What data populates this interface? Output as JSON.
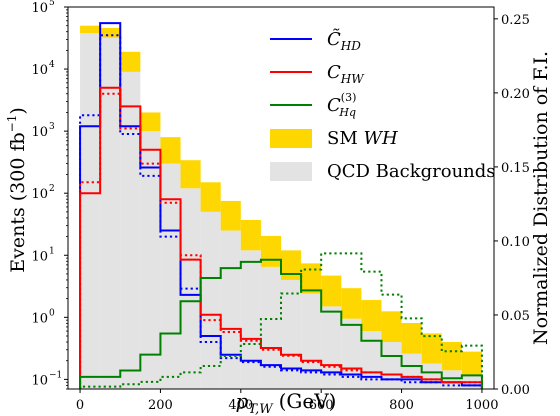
{
  "chart_data": {
    "type": "histogram",
    "xlabel": "p_{T,W} (GeV)",
    "xlabel_parts": {
      "p": "p",
      "sub": "T,W",
      "unit": "(GeV)"
    },
    "ylabel_left": "Events (300 fb",
    "ylabel_left_sup": "−1",
    "ylabel_left_close": ")",
    "ylabel_right": "Normalized Distribution of F.I.",
    "xlim": [
      -30,
      1030
    ],
    "ylim_left": [
      0.07,
      100000
    ],
    "yscale_left": "log",
    "ylim_right": [
      0.0,
      0.258
    ],
    "xticks": [
      0,
      200,
      400,
      600,
      800,
      1000
    ],
    "yticks_left": [
      {
        "value": 0.1,
        "base": "10",
        "exp": "−1"
      },
      {
        "value": 1,
        "base": "10",
        "exp": "0"
      },
      {
        "value": 10,
        "base": "10",
        "exp": "1"
      },
      {
        "value": 100,
        "base": "10",
        "exp": "2"
      },
      {
        "value": 1000,
        "base": "10",
        "exp": "3"
      },
      {
        "value": 10000,
        "base": "10",
        "exp": "4"
      },
      {
        "value": 100000,
        "base": "10",
        "exp": "5"
      }
    ],
    "yticks_right": [
      "0.00",
      "0.05",
      "0.10",
      "0.15",
      "0.20",
      "0.25"
    ],
    "bin_edges": [
      0,
      50,
      100,
      150,
      200,
      250,
      300,
      350,
      400,
      450,
      500,
      550,
      600,
      650,
      700,
      750,
      800,
      850,
      900,
      950,
      1000
    ],
    "stacked": [
      {
        "name": "QCD Backgrounds",
        "color": "#e3e3e3",
        "values": [
          38000,
          32000,
          9000,
          1000,
          300,
          120,
          50,
          25,
          12,
          6.5,
          4.0,
          2.4,
          1.5,
          0.95,
          0.6,
          0.4,
          0.26,
          0.18,
          0.14,
          0.12
        ]
      },
      {
        "name": "SM WH",
        "color": "#ffd700",
        "values": [
          12000,
          14000,
          10000,
          1000,
          500,
          220,
          100,
          50,
          25,
          14,
          8,
          5,
          3.2,
          2.0,
          1.3,
          0.85,
          0.55,
          0.37,
          0.26,
          0.16
        ]
      }
    ],
    "lines": [
      {
        "name": "C̃_HD",
        "color": "#0000ff",
        "solid_values": [
          1200,
          55000,
          1200,
          260,
          25,
          2.3,
          0.5,
          0.25,
          0.2,
          0.17,
          0.15,
          0.14,
          0.13,
          0.12,
          0.11,
          0.1,
          0.1,
          0.09,
          0.09,
          0.08
        ],
        "dotted_values": [
          1800,
          35000,
          900,
          190,
          20,
          2.9,
          0.4,
          0.22,
          0.19,
          0.16,
          0.14,
          0.13,
          0.12,
          0.11,
          0.1,
          0.1,
          0.09,
          0.09,
          0.08,
          0.08
        ]
      },
      {
        "name": "C_HW",
        "color": "#ff0000",
        "solid_values": [
          100,
          5000,
          2500,
          500,
          80,
          8.5,
          1.1,
          0.65,
          0.45,
          0.32,
          0.25,
          0.2,
          0.17,
          0.15,
          0.13,
          0.12,
          0.11,
          0.1,
          0.09,
          0.09
        ],
        "dotted_values": [
          150,
          4000,
          1100,
          300,
          70,
          10,
          0.9,
          0.58,
          0.42,
          0.3,
          0.24,
          0.19,
          0.16,
          0.14,
          0.13,
          0.12,
          0.11,
          0.1,
          0.09,
          0.09
        ]
      },
      {
        "name": "C_Hq^(3)",
        "color": "#008000",
        "solid_values": [
          0.0082,
          0.0082,
          0.0125,
          0.0232,
          0.0375,
          0.0593,
          0.075,
          0.0816,
          0.0859,
          0.0873,
          0.0777,
          0.0666,
          0.0523,
          0.0433,
          0.0326,
          0.0223,
          0.0155,
          0.0112,
          0.0073,
          0.0092
        ],
        "dotted_values": [
          0.0016,
          0.0016,
          0.0032,
          0.0048,
          0.0082,
          0.0112,
          0.0155,
          0.0223,
          0.0304,
          0.0473,
          0.0645,
          0.0807,
          0.0916,
          0.0916,
          0.0793,
          0.0637,
          0.0477,
          0.0357,
          0.0255,
          0.0293
        ]
      }
    ],
    "legend": {
      "position": "top-right",
      "items": [
        {
          "kind": "line",
          "color": "#0000ff",
          "label": "C̃",
          "sub": "HD",
          "sup": ""
        },
        {
          "kind": "line",
          "color": "#ff0000",
          "label": "C",
          "sub": "HW",
          "sup": ""
        },
        {
          "kind": "line",
          "color": "#008000",
          "label": "C",
          "sub": "Hq",
          "sup": "(3)"
        },
        {
          "kind": "patch",
          "color": "#ffd700",
          "label": "SM ",
          "italic": "WH"
        },
        {
          "kind": "patch",
          "color": "#e3e3e3",
          "label": "QCD Backgrounds",
          "italic": ""
        }
      ]
    }
  }
}
